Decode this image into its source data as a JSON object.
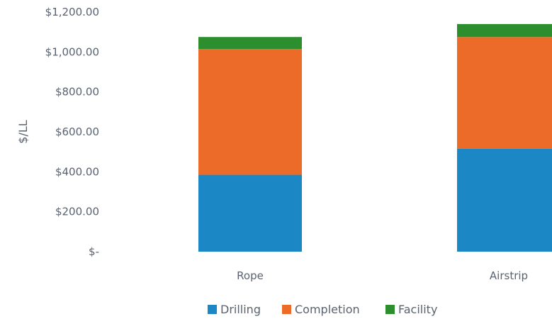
{
  "chart_data": {
    "type": "bar",
    "stacked": true,
    "categories": [
      "Rope",
      "Airstrip"
    ],
    "series": [
      {
        "name": "Drilling",
        "color": "#1b87c4",
        "values": [
          385,
          515
        ]
      },
      {
        "name": "Completion",
        "color": "#ec6b28",
        "values": [
          630,
          560
        ]
      },
      {
        "name": "Facility",
        "color": "#2d8e2d",
        "values": [
          60,
          65
        ]
      }
    ],
    "ylabel": "$/LL",
    "xlabel": "",
    "ylim": [
      0,
      1200
    ],
    "yticks": [
      0,
      200,
      400,
      600,
      800,
      1000,
      1200
    ],
    "ytick_labels": [
      "$-",
      "$200.00",
      "$400.00",
      "$600.00",
      "$800.00",
      "$1,000.00",
      "$1,200.00"
    ],
    "grid": false,
    "legend_position": "bottom"
  }
}
